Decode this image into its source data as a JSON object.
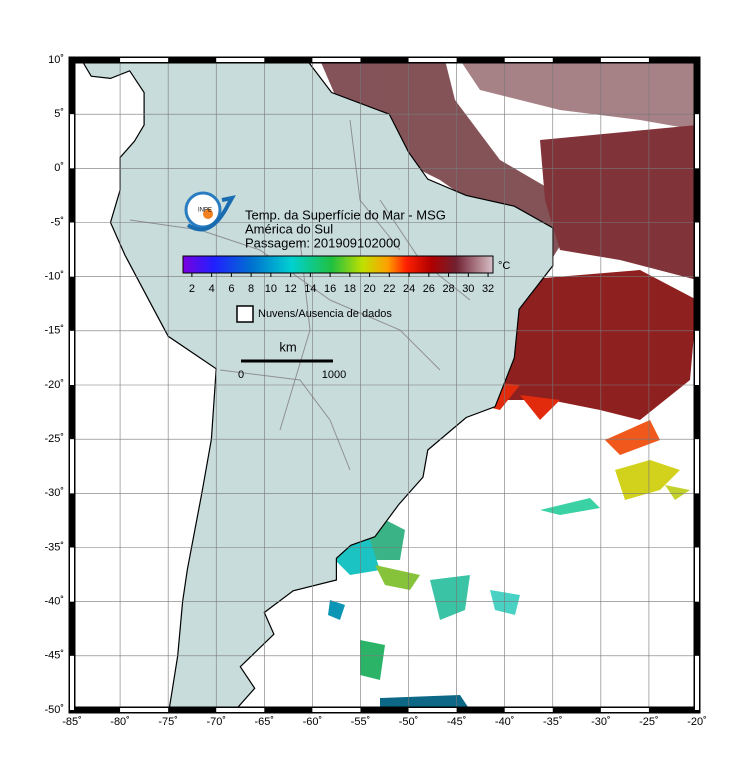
{
  "header": {
    "logo": "INPE",
    "title": "Temp. da Superfície do Mar - MSG",
    "region": "América do Sul",
    "pass": "Passagem: 201909102000"
  },
  "colorbar": {
    "lim": [
      1.1,
      32.5
    ],
    "ticks": [
      2,
      4,
      6,
      8,
      10,
      12,
      14,
      16,
      18,
      20,
      22,
      24,
      26,
      28,
      30,
      32
    ],
    "unit": "°C"
  },
  "legend": "Nuvens/Ausencia de dados",
  "scale": {
    "unit": "km",
    "start": "0",
    "end": "1000"
  },
  "map": {
    "xlim": [
      -85,
      -20
    ],
    "ylim": [
      -50,
      10
    ],
    "xticks": [
      {
        "value": -85,
        "label": "-85˚"
      },
      {
        "value": -80,
        "label": "-80˚"
      },
      {
        "value": -75,
        "label": "-75˚"
      },
      {
        "value": -70,
        "label": "-70˚"
      },
      {
        "value": -65,
        "label": "-65˚"
      },
      {
        "value": -60,
        "label": "-60˚"
      },
      {
        "value": -55,
        "label": "-55˚"
      },
      {
        "value": -50,
        "label": "-50˚"
      },
      {
        "value": -45,
        "label": "-45˚"
      },
      {
        "value": -40,
        "label": "-40˚"
      },
      {
        "value": -35,
        "label": "-35˚"
      },
      {
        "value": -30,
        "label": "-30˚"
      },
      {
        "value": -25,
        "label": "-25˚"
      },
      {
        "value": -20,
        "label": "-20˚"
      }
    ],
    "yticks": [
      {
        "value": 10,
        "label": "10˚"
      },
      {
        "value": 5,
        "label": "5˚"
      },
      {
        "value": 0,
        "label": "0˚"
      },
      {
        "value": -5,
        "label": "-5˚"
      },
      {
        "value": -10,
        "label": "-10˚"
      },
      {
        "value": -15,
        "label": "-15˚"
      },
      {
        "value": -20,
        "label": "-20˚"
      },
      {
        "value": -25,
        "label": "-25˚"
      },
      {
        "value": -30,
        "label": "-30˚"
      },
      {
        "value": -35,
        "label": "-35˚"
      },
      {
        "value": -40,
        "label": "-40˚"
      },
      {
        "value": -45,
        "label": "-45˚"
      },
      {
        "value": -50,
        "label": "-50˚"
      }
    ]
  }
}
